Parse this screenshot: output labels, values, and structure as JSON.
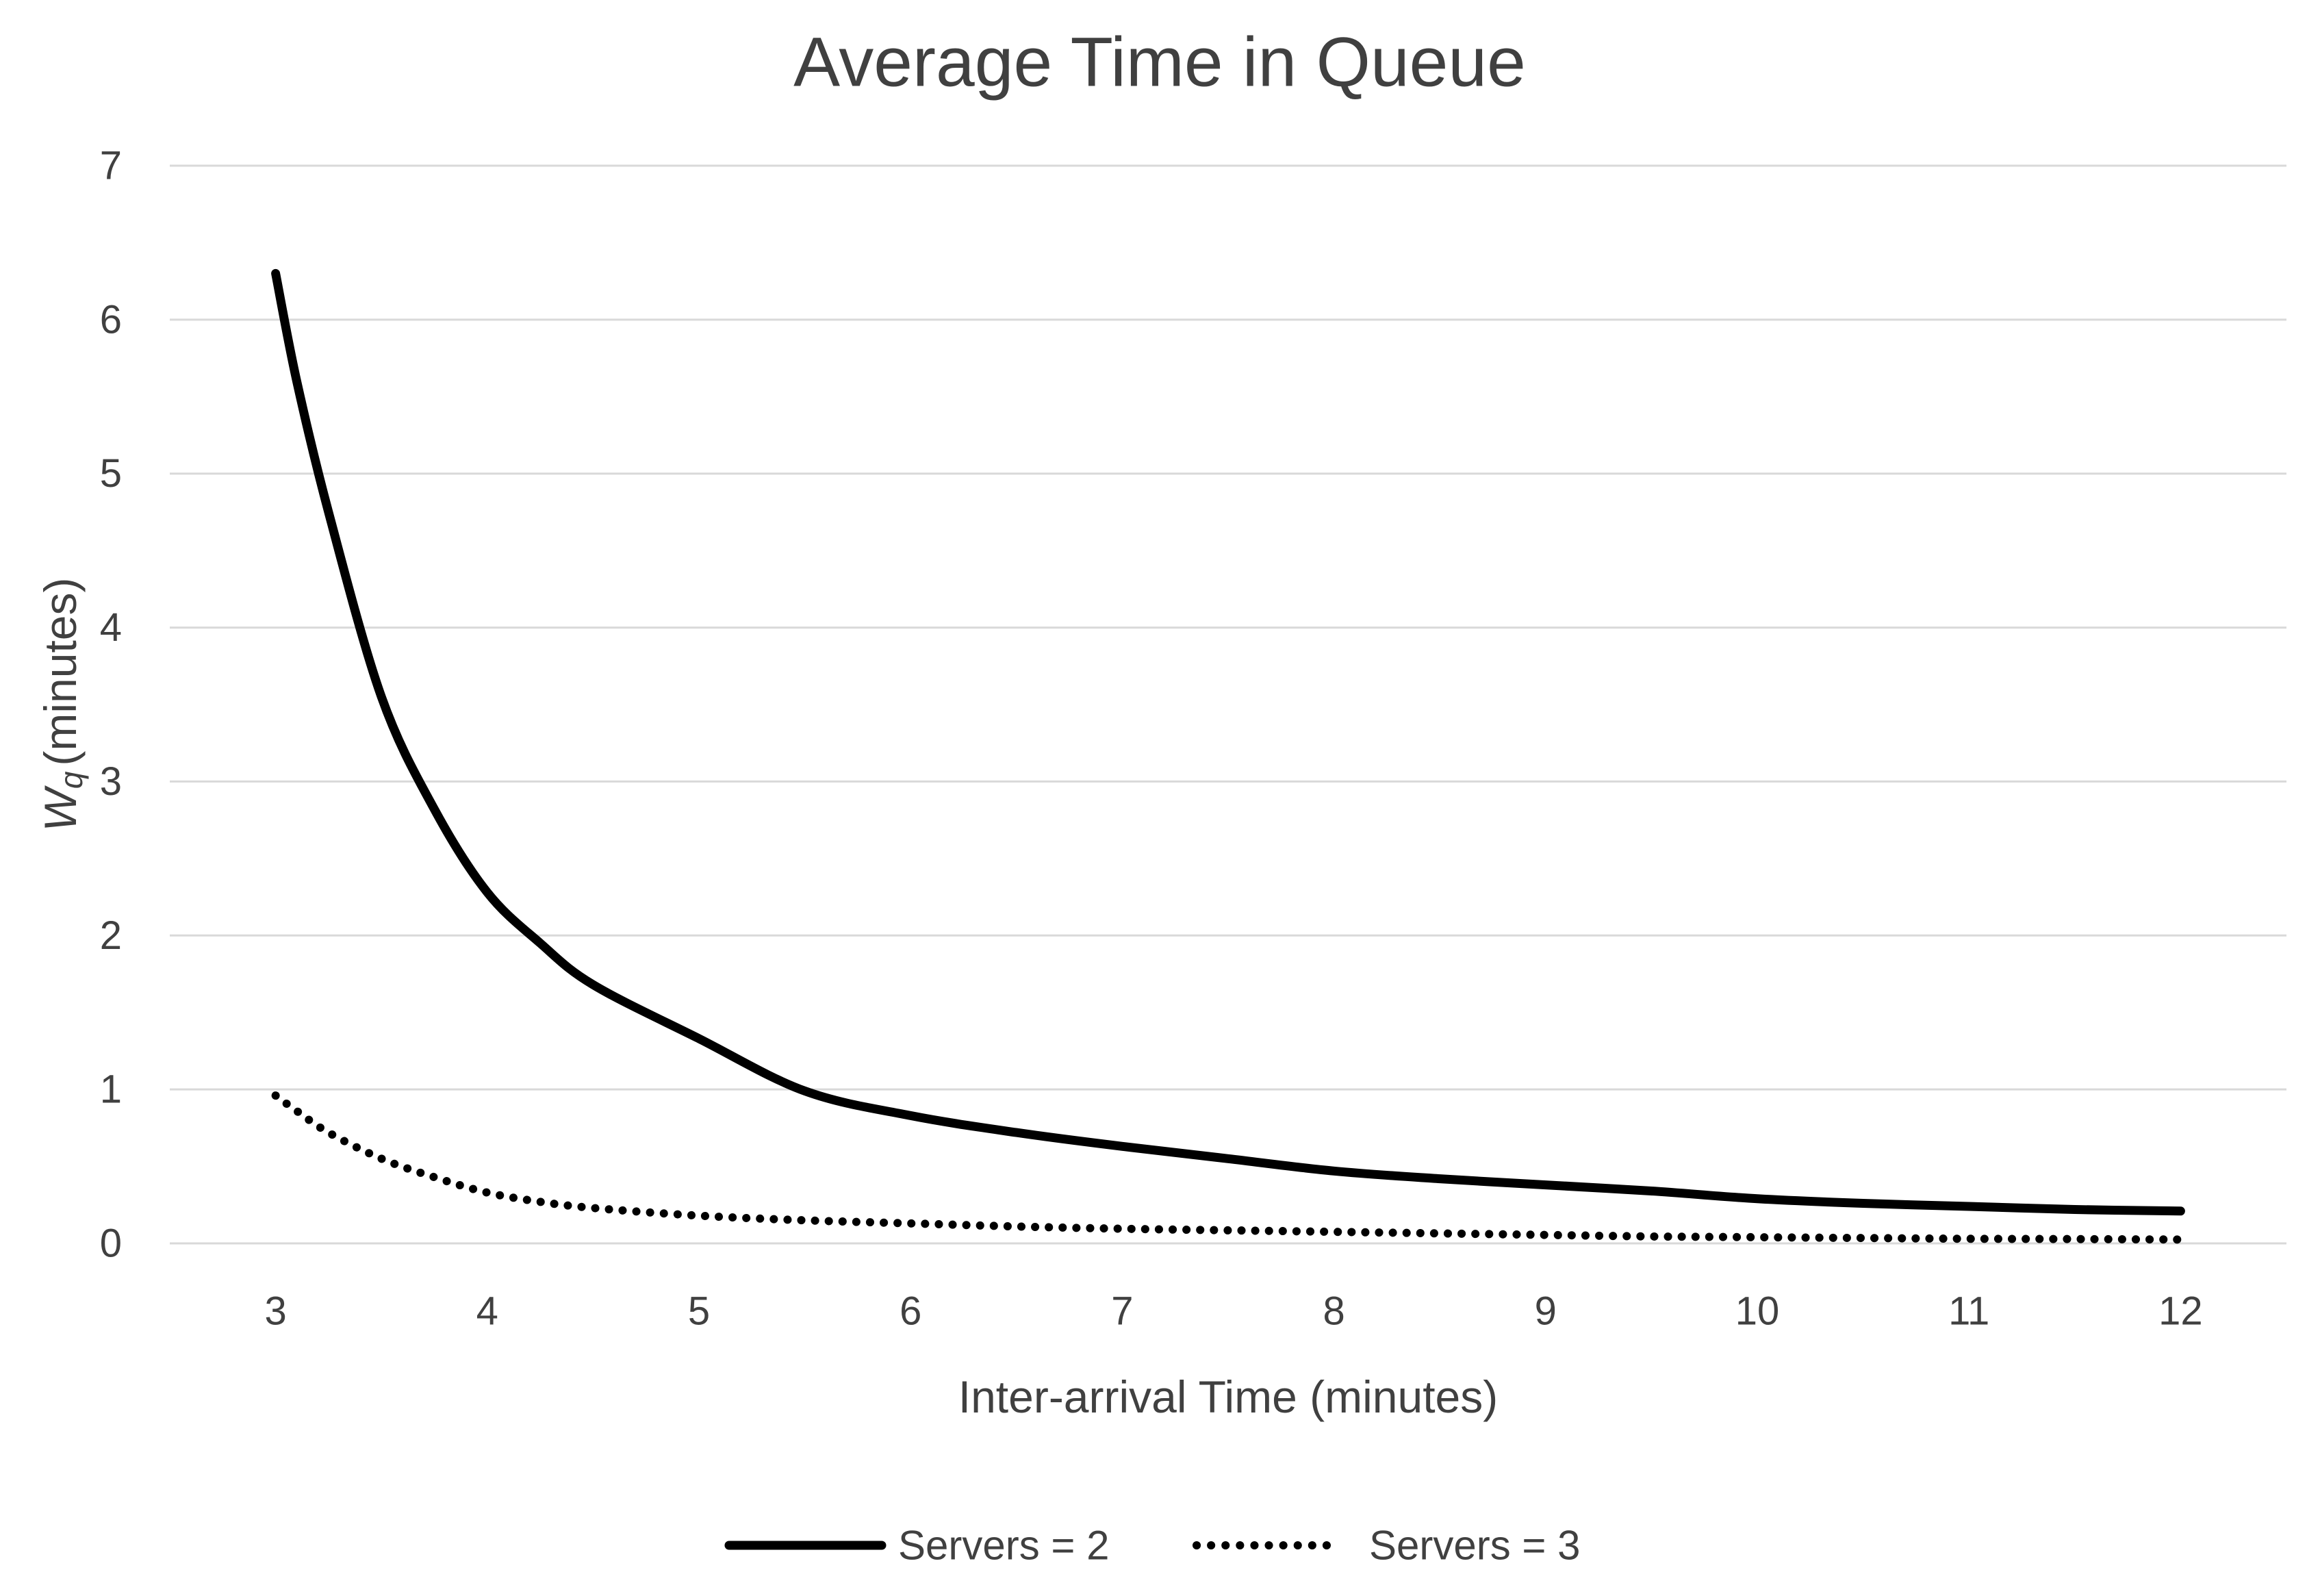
{
  "chart_data": {
    "type": "line",
    "title": "Average Time in Queue",
    "xlabel": "Inter-arrival Time (minutes)",
    "ylabel": "Wq (minutes)",
    "ylabel_var": "W",
    "ylabel_sub": "q",
    "ylabel_rest": "(minutes)",
    "xlim": [
      2.5,
      12.5
    ],
    "ylim": [
      0,
      7
    ],
    "x_ticks": [
      3,
      4,
      5,
      6,
      7,
      8,
      9,
      10,
      11,
      12
    ],
    "y_ticks": [
      0,
      1,
      2,
      3,
      4,
      5,
      6,
      7
    ],
    "grid": "horizontal-only",
    "legend_position": "bottom-center",
    "x": [
      3,
      3.1,
      3.25,
      3.5,
      3.75,
      4,
      4.25,
      4.5,
      5,
      5.5,
      6,
      6.5,
      7,
      7.5,
      8,
      8.5,
      9,
      9.5,
      10,
      10.5,
      11,
      11.5,
      12
    ],
    "series": [
      {
        "name": "Servers = 2",
        "style": "solid",
        "color": "#000000",
        "values": [
          6.3,
          5.6,
          4.75,
          3.55,
          2.82,
          2.28,
          1.95,
          1.68,
          1.33,
          0.99,
          0.83,
          0.72,
          0.63,
          0.55,
          0.47,
          0.42,
          0.38,
          0.34,
          0.29,
          0.26,
          0.24,
          0.22,
          0.21
        ]
      },
      {
        "name": "Servers = 3",
        "style": "dotted",
        "color": "#000000",
        "values": [
          0.96,
          0.86,
          0.72,
          0.55,
          0.43,
          0.33,
          0.27,
          0.23,
          0.18,
          0.15,
          0.13,
          0.11,
          0.095,
          0.085,
          0.075,
          0.065,
          0.055,
          0.045,
          0.04,
          0.035,
          0.03,
          0.028,
          0.025
        ]
      }
    ],
    "colors": {
      "text": "#404040",
      "grid": "#d9d9d9",
      "background": "#ffffff",
      "line": "#000000"
    }
  }
}
